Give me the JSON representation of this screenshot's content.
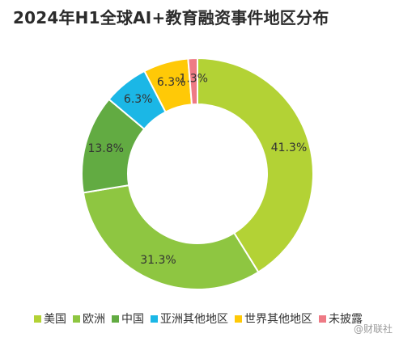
{
  "chart_data": {
    "type": "pie",
    "title": "2024年H1全球AI+教育融资事件地区分布",
    "categories": [
      "美国",
      "欧洲",
      "中国",
      "亚洲其他地区",
      "世界其他地区",
      "未披露"
    ],
    "values": [
      41.3,
      31.3,
      13.8,
      6.3,
      6.3,
      1.3
    ],
    "labels": [
      "41.3%",
      "31.3%",
      "13.8%",
      "6.3%",
      "6.3%",
      "1.3%"
    ],
    "colors": [
      "#b3d235",
      "#8ec641",
      "#62ab42",
      "#1bb7e6",
      "#ffc907",
      "#ee7a85"
    ],
    "legend_position": "bottom",
    "donut": true
  },
  "watermark": "@财联社"
}
